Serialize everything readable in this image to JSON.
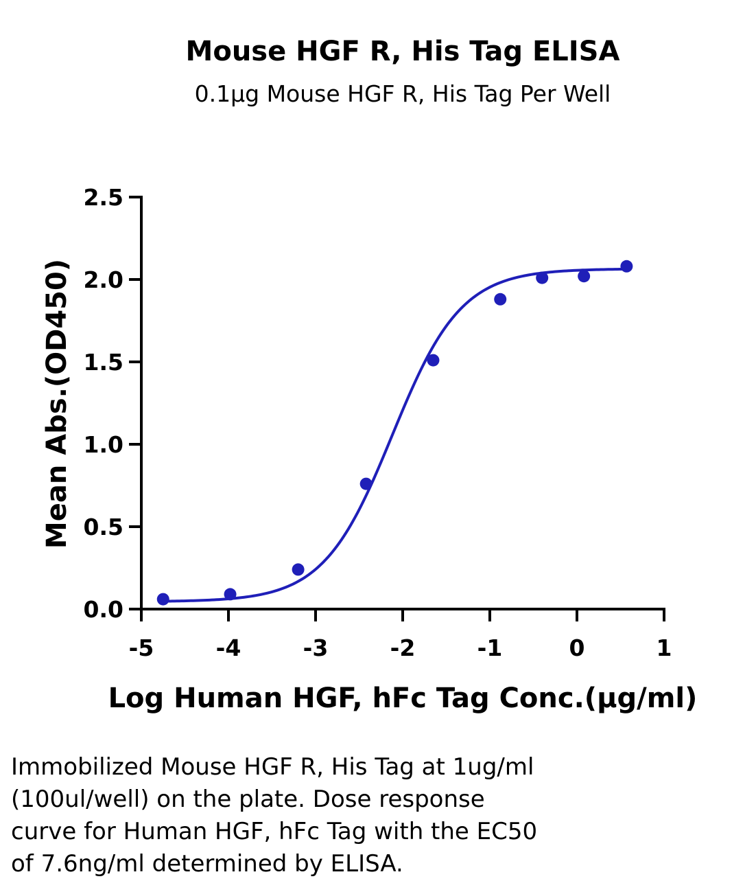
{
  "chart_data": {
    "type": "scatter",
    "title": "Mouse HGF R, His Tag ELISA",
    "subtitle": "0.1μg Mouse HGF R, His Tag Per Well",
    "xlabel": "Log Human HGF, hFc Tag Conc.(μg/ml)",
    "ylabel": "Mean Abs.(OD450)",
    "xlim": [
      -5,
      1
    ],
    "ylim": [
      0,
      2.5
    ],
    "x_ticks": [
      -5,
      -4,
      -3,
      -2,
      -1,
      0,
      1
    ],
    "y_ticks": [
      0,
      0.5,
      1,
      1.5,
      2,
      2.5
    ],
    "x_tick_labels": [
      "-5",
      "-4",
      "-3",
      "-2",
      "-1",
      "0",
      "1"
    ],
    "y_tick_labels": [
      "0.0",
      "0.5",
      "1.0",
      "1.5",
      "2.0",
      "2.5"
    ],
    "series": [
      {
        "x": [
          -4.75,
          -3.98,
          -3.2,
          -2.42,
          -1.65,
          -0.88,
          -0.4,
          0.08,
          0.57
        ],
        "y": [
          0.06,
          0.09,
          0.24,
          0.76,
          1.51,
          1.88,
          2.01,
          2.02,
          2.08
        ],
        "color": "#1f1fb8",
        "fit": "4PL",
        "fit_params": {
          "bottom": 0.045,
          "top": 2.065,
          "log_ec50": -2.12,
          "hill": 1.1
        }
      }
    ],
    "grid": false,
    "legend": "none"
  },
  "caption": [
    "Immobilized Mouse HGF R, His Tag at 1ug/ml",
    "(100ul/well) on the plate. Dose response",
    "curve for Human HGF, hFc Tag with the EC50",
    "of 7.6ng/ml determined by ELISA."
  ]
}
